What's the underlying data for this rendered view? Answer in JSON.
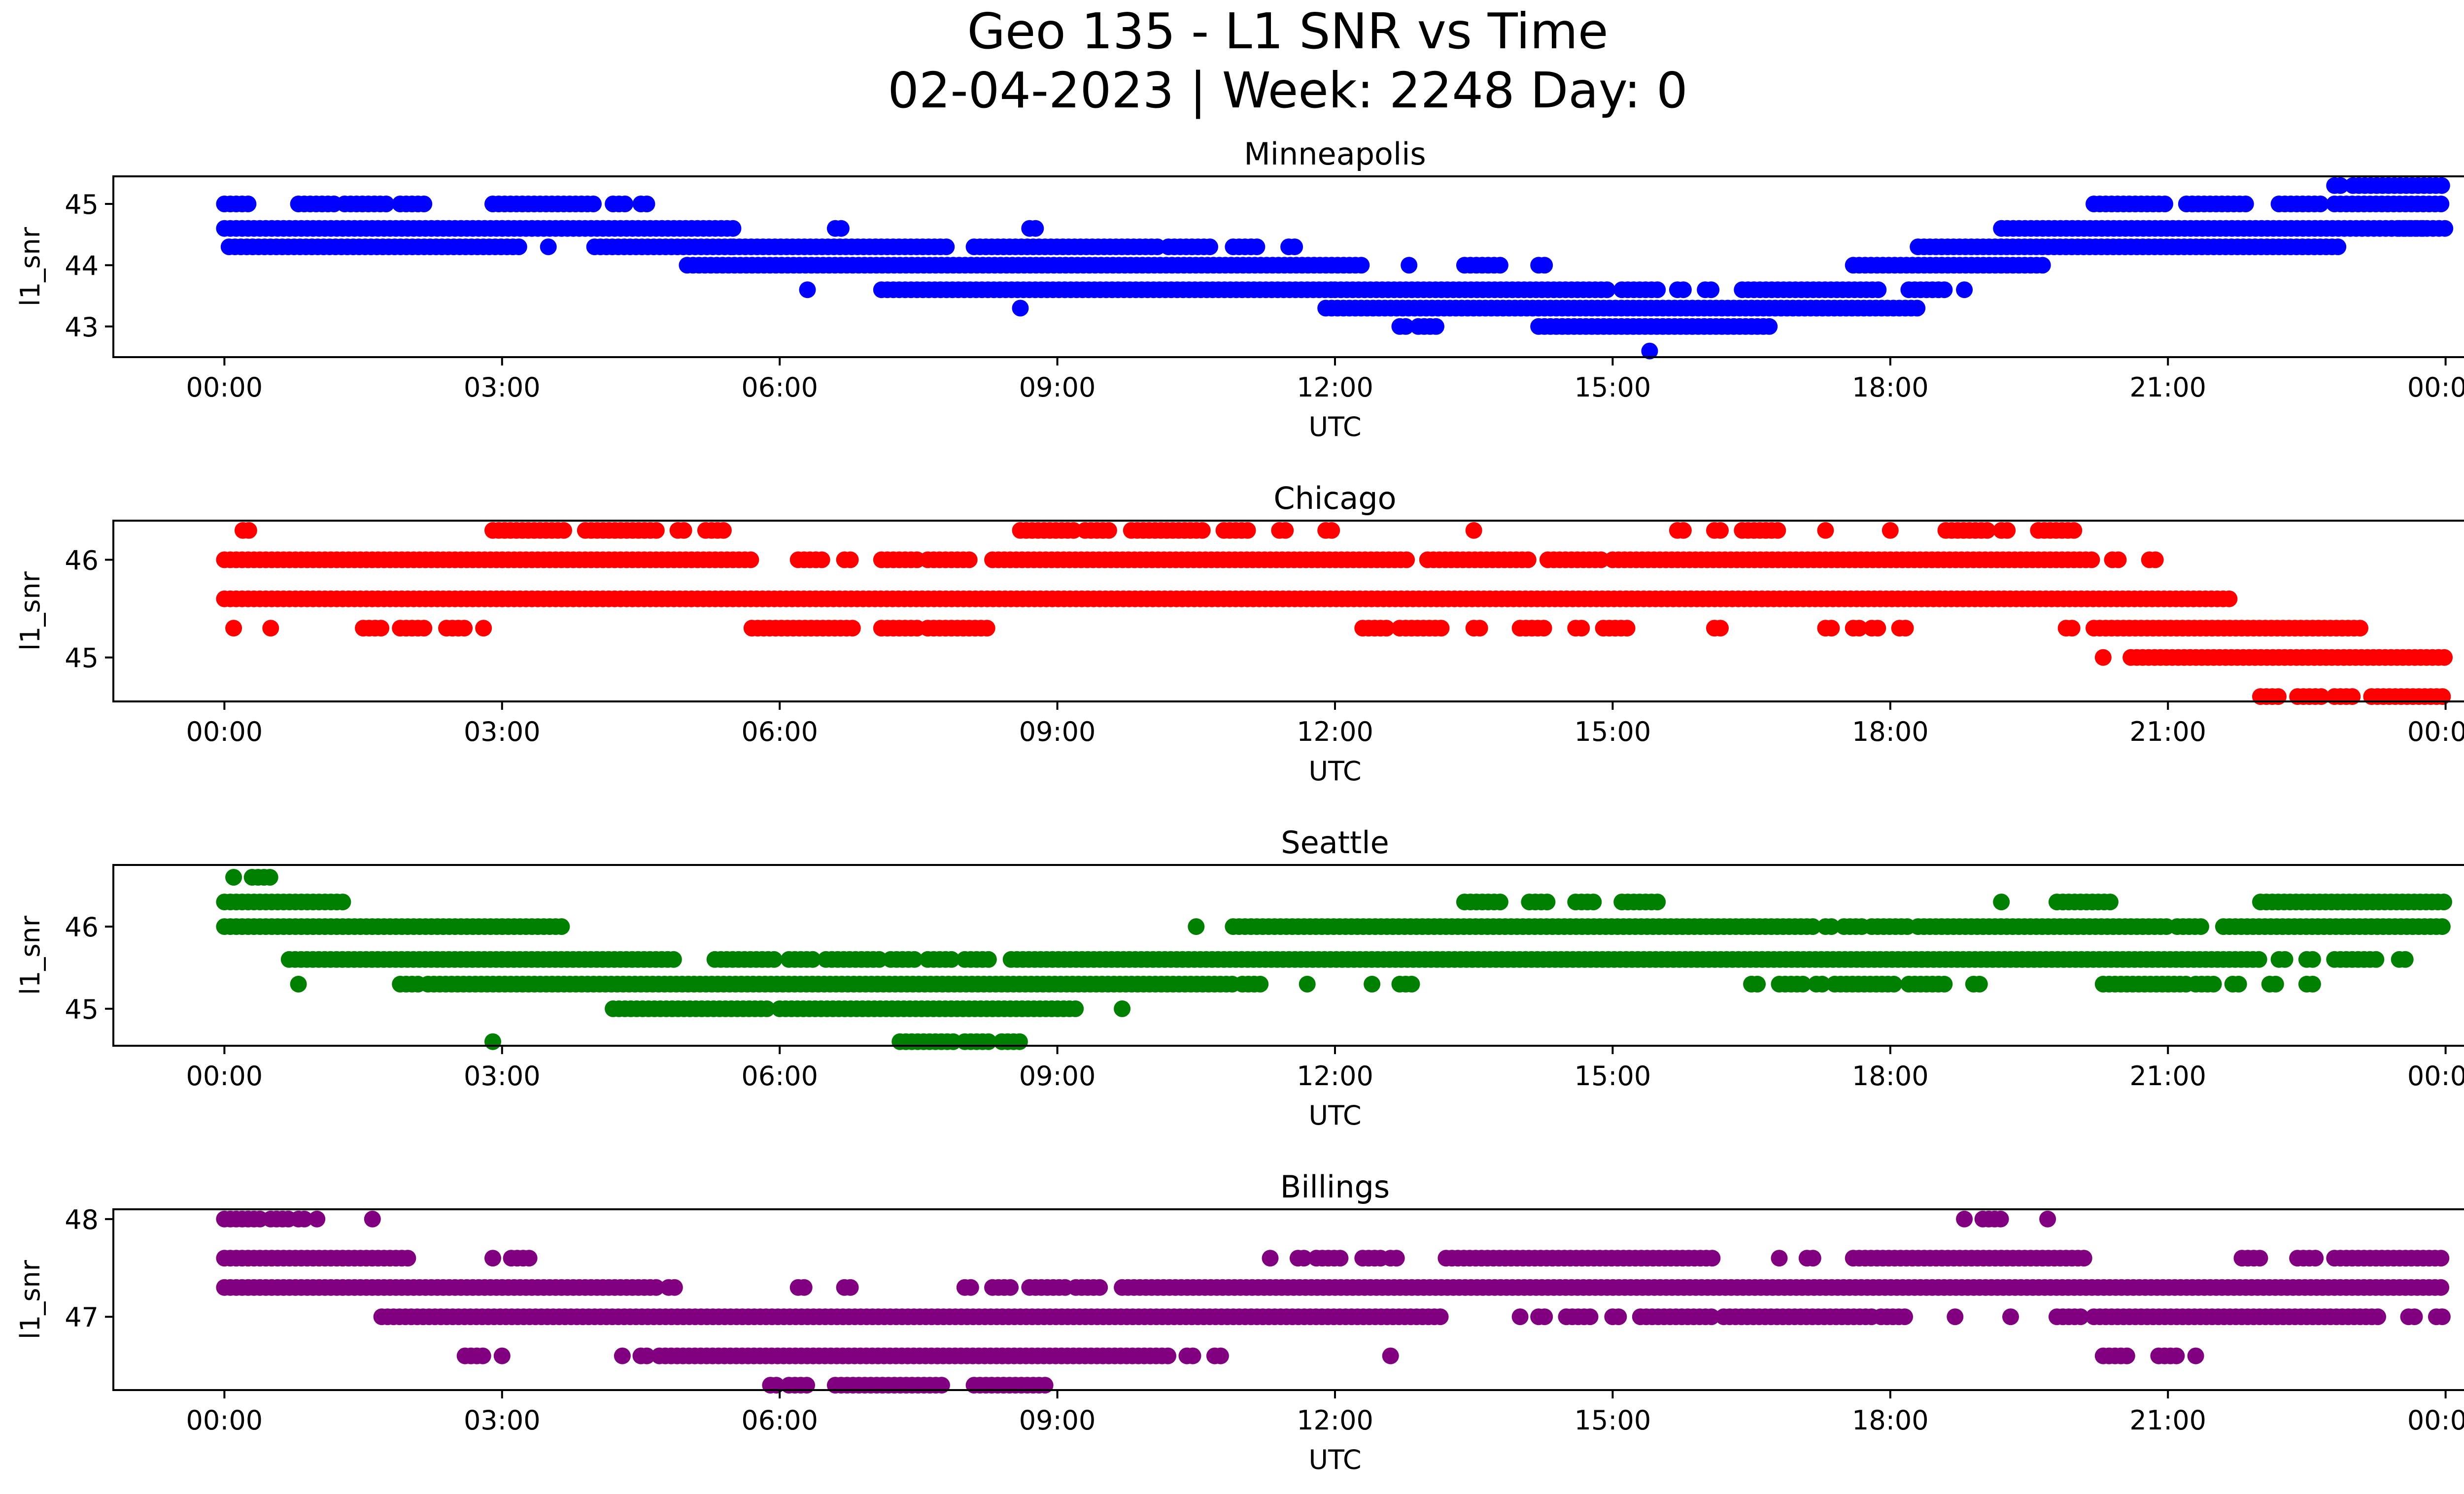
{
  "figure": {
    "title_line1": "Geo 135 - L1 SNR vs Time",
    "title_line2": "02-04-2023 | Week: 2248 Day: 0"
  },
  "x_axis": {
    "label": "UTC",
    "ticks": [
      "00:00",
      "03:00",
      "06:00",
      "09:00",
      "12:00",
      "15:00",
      "18:00",
      "21:00",
      "00:00"
    ],
    "range_hours": [
      -1.2,
      25.2
    ]
  },
  "chart_data": [
    {
      "type": "scatter",
      "title": "Minneapolis",
      "ylabel": "l1_snr",
      "color": "#0000ff",
      "ylim": [
        42.5,
        45.45
      ],
      "yticks": [
        43,
        44,
        45
      ],
      "bands": [
        {
          "y": 45.0,
          "segments": [
            [
              0.0,
              0.3
            ],
            [
              0.8,
              1.2
            ],
            [
              1.3,
              1.8
            ],
            [
              1.9,
              2.2
            ],
            [
              2.9,
              4.0
            ],
            [
              4.2,
              4.35
            ],
            [
              4.5,
              4.6
            ]
          ]
        },
        {
          "y": 44.6,
          "segments": [
            [
              0.0,
              5.5
            ],
            [
              6.6,
              6.7
            ],
            [
              8.7,
              8.8
            ]
          ]
        },
        {
          "y": 44.3,
          "segments": [
            [
              0.05,
              3.2
            ],
            [
              3.5,
              3.55
            ],
            [
              4.0,
              5.5
            ]
          ]
        },
        {
          "y": 44.0,
          "segments": [
            [
              5.0,
              12.3
            ],
            [
              12.8,
              12.85
            ],
            [
              13.4,
              13.8
            ],
            [
              14.2,
              14.3
            ]
          ]
        },
        {
          "y": 44.3,
          "segments": [
            [
              5.5,
              7.8
            ],
            [
              8.1,
              10.1
            ],
            [
              10.2,
              10.7
            ],
            [
              10.9,
              11.2
            ],
            [
              11.5,
              11.6
            ]
          ]
        },
        {
          "y": 43.6,
          "segments": [
            [
              6.3,
              6.35
            ],
            [
              7.1,
              12.0
            ],
            [
              12.0,
              15.0
            ],
            [
              15.1,
              15.5
            ],
            [
              15.7,
              15.8
            ],
            [
              16.0,
              16.1
            ],
            [
              16.4,
              17.9
            ],
            [
              18.2,
              18.6
            ],
            [
              18.8,
              18.85
            ]
          ]
        },
        {
          "y": 43.3,
          "segments": [
            [
              8.6,
              8.65
            ],
            [
              11.9,
              18.3
            ]
          ]
        },
        {
          "y": 43.0,
          "segments": [
            [
              12.7,
              12.8
            ],
            [
              12.9,
              13.1
            ],
            [
              14.2,
              16.7
            ]
          ]
        },
        {
          "y": 42.6,
          "segments": [
            [
              15.4,
              15.45
            ]
          ]
        },
        {
          "y": 44.0,
          "segments": [
            [
              17.6,
              19.7
            ]
          ]
        },
        {
          "y": 44.3,
          "segments": [
            [
              18.3,
              22.9
            ]
          ]
        },
        {
          "y": 44.6,
          "segments": [
            [
              19.2,
              24.0
            ],
            [
              23.5,
              23.8
            ]
          ]
        },
        {
          "y": 45.0,
          "segments": [
            [
              20.2,
              21.0
            ],
            [
              21.2,
              21.9
            ],
            [
              22.2,
              22.7
            ],
            [
              22.8,
              24.0
            ]
          ]
        },
        {
          "y": 45.3,
          "segments": [
            [
              22.8,
              22.9
            ],
            [
              23.0,
              24.0
            ]
          ]
        }
      ]
    },
    {
      "type": "scatter",
      "title": "Chicago",
      "ylabel": "l1_snr",
      "color": "#ff0000",
      "ylim": [
        44.55,
        46.4
      ],
      "yticks": [
        45,
        46
      ],
      "bands": [
        {
          "y": 46.3,
          "segments": [
            [
              0.2,
              0.3
            ],
            [
              2.9,
              3.7
            ],
            [
              3.9,
              4.7
            ],
            [
              4.9,
              5.0
            ],
            [
              5.2,
              5.4
            ],
            [
              8.6,
              9.2
            ],
            [
              9.3,
              9.6
            ],
            [
              9.8,
              10.6
            ],
            [
              10.8,
              11.1
            ],
            [
              11.4,
              11.5
            ],
            [
              11.9,
              12.0
            ],
            [
              13.5,
              13.55
            ],
            [
              15.7,
              15.8
            ],
            [
              16.1,
              16.2
            ],
            [
              16.4,
              16.8
            ],
            [
              17.3,
              17.35
            ],
            [
              18.0,
              18.05
            ],
            [
              18.6,
              19.1
            ],
            [
              19.2,
              19.3
            ],
            [
              19.6,
              20.0
            ]
          ]
        },
        {
          "y": 46.0,
          "segments": [
            [
              0.0,
              5.7
            ],
            [
              6.2,
              6.5
            ],
            [
              6.7,
              6.8
            ],
            [
              7.1,
              7.5
            ],
            [
              7.6,
              8.1
            ],
            [
              8.3,
              12.8
            ],
            [
              13.0,
              14.1
            ],
            [
              14.3,
              14.9
            ],
            [
              15.0,
              20.2
            ],
            [
              20.4,
              20.5
            ],
            [
              20.8,
              20.9
            ]
          ]
        },
        {
          "y": 45.6,
          "segments": [
            [
              0.0,
              21.7
            ]
          ]
        },
        {
          "y": 45.3,
          "segments": [
            [
              0.1,
              0.15
            ],
            [
              0.5,
              0.55
            ],
            [
              1.5,
              1.7
            ],
            [
              1.9,
              2.2
            ],
            [
              2.4,
              2.6
            ],
            [
              2.8,
              2.85
            ],
            [
              5.7,
              6.8
            ],
            [
              7.1,
              7.5
            ],
            [
              7.6,
              8.3
            ],
            [
              12.3,
              12.6
            ],
            [
              12.7,
              13.2
            ],
            [
              13.5,
              13.6
            ],
            [
              14.0,
              14.3
            ],
            [
              14.6,
              14.7
            ],
            [
              14.9,
              15.2
            ],
            [
              16.1,
              16.2
            ],
            [
              17.3,
              17.4
            ],
            [
              17.6,
              17.7
            ],
            [
              17.8,
              17.9
            ],
            [
              18.1,
              18.2
            ],
            [
              19.9,
              20.0
            ],
            [
              20.2,
              23.1
            ]
          ]
        },
        {
          "y": 45.0,
          "segments": [
            [
              20.3,
              20.35
            ],
            [
              20.6,
              24.0
            ]
          ]
        },
        {
          "y": 44.6,
          "segments": [
            [
              22.0,
              22.2
            ],
            [
              22.4,
              22.7
            ],
            [
              22.8,
              23.0
            ],
            [
              23.2,
              24.0
            ]
          ]
        }
      ]
    },
    {
      "type": "scatter",
      "title": "Seattle",
      "ylabel": "l1_snr",
      "color": "#008000",
      "ylim": [
        44.55,
        46.75
      ],
      "yticks": [
        45,
        46
      ],
      "bands": [
        {
          "y": 46.6,
          "segments": [
            [
              0.1,
              0.15
            ],
            [
              0.3,
              0.5
            ]
          ]
        },
        {
          "y": 46.3,
          "segments": [
            [
              0.0,
              1.3
            ],
            [
              13.4,
              13.8
            ],
            [
              14.1,
              14.3
            ],
            [
              14.6,
              14.8
            ],
            [
              15.1,
              15.5
            ],
            [
              19.2,
              19.25
            ],
            [
              19.8,
              20.4
            ],
            [
              22.0,
              24.0
            ]
          ]
        },
        {
          "y": 46.0,
          "segments": [
            [
              0.0,
              3.7
            ],
            [
              10.5,
              10.55
            ],
            [
              10.9,
              17.2
            ],
            [
              17.3,
              17.4
            ],
            [
              17.5,
              17.7
            ],
            [
              17.8,
              18.2
            ],
            [
              18.3,
              21.0
            ],
            [
              21.1,
              21.4
            ],
            [
              21.6,
              24.0
            ]
          ]
        },
        {
          "y": 45.6,
          "segments": [
            [
              0.7,
              4.9
            ],
            [
              5.3,
              6.0
            ],
            [
              6.1,
              6.4
            ],
            [
              6.5,
              7.1
            ],
            [
              7.2,
              7.5
            ],
            [
              7.6,
              7.9
            ],
            [
              8.0,
              8.3
            ],
            [
              8.5,
              22.0
            ],
            [
              22.2,
              22.3
            ],
            [
              22.5,
              22.6
            ],
            [
              22.8,
              23.3
            ],
            [
              23.5,
              23.6
            ]
          ]
        },
        {
          "y": 45.3,
          "segments": [
            [
              0.8,
              0.85
            ],
            [
              1.9,
              2.1
            ],
            [
              2.2,
              10.9
            ],
            [
              11.0,
              11.2
            ],
            [
              11.7,
              11.75
            ],
            [
              12.4,
              12.45
            ],
            [
              12.7,
              12.85
            ],
            [
              16.5,
              16.6
            ],
            [
              16.8,
              17.1
            ],
            [
              17.2,
              17.3
            ],
            [
              17.4,
              18.1
            ],
            [
              18.2,
              18.6
            ],
            [
              18.9,
              19.0
            ],
            [
              20.3,
              21.2
            ],
            [
              21.3,
              21.5
            ],
            [
              21.7,
              21.8
            ],
            [
              22.1,
              22.2
            ],
            [
              22.5,
              22.6
            ]
          ]
        },
        {
          "y": 45.0,
          "segments": [
            [
              4.2,
              5.9
            ],
            [
              6.0,
              9.2
            ],
            [
              9.7,
              9.75
            ]
          ]
        },
        {
          "y": 44.6,
          "segments": [
            [
              2.9,
              2.95
            ],
            [
              7.3,
              7.9
            ],
            [
              8.0,
              8.3
            ],
            [
              8.4,
              8.6
            ]
          ]
        }
      ]
    },
    {
      "type": "scatter",
      "title": "Billings",
      "ylabel": "l1_snr",
      "color": "#800080",
      "ylim": [
        46.25,
        48.1
      ],
      "yticks": [
        47,
        48
      ],
      "bands": [
        {
          "y": 48.0,
          "segments": [
            [
              0.0,
              0.4
            ],
            [
              0.5,
              0.7
            ],
            [
              0.8,
              0.9
            ],
            [
              1.0,
              1.05
            ],
            [
              1.6,
              1.65
            ],
            [
              18.8,
              18.85
            ],
            [
              19.0,
              19.2
            ],
            [
              19.7,
              19.75
            ]
          ]
        },
        {
          "y": 47.6,
          "segments": [
            [
              0.0,
              2.0
            ],
            [
              2.9,
              2.95
            ],
            [
              3.1,
              3.3
            ],
            [
              11.3,
              11.35
            ],
            [
              11.6,
              11.7
            ],
            [
              11.8,
              12.1
            ],
            [
              12.3,
              12.5
            ],
            [
              12.6,
              12.7
            ],
            [
              13.2,
              16.1
            ],
            [
              16.8,
              16.85
            ],
            [
              17.1,
              17.2
            ],
            [
              17.6,
              20.1
            ],
            [
              21.8,
              22.0
            ],
            [
              22.4,
              22.6
            ],
            [
              22.8,
              24.0
            ]
          ]
        },
        {
          "y": 47.3,
          "segments": [
            [
              0.0,
              4.7
            ],
            [
              4.8,
              4.9
            ],
            [
              6.2,
              6.3
            ],
            [
              6.7,
              6.8
            ],
            [
              8.0,
              8.1
            ],
            [
              8.3,
              8.5
            ],
            [
              8.7,
              9.1
            ],
            [
              9.2,
              9.5
            ],
            [
              9.7,
              24.0
            ]
          ]
        },
        {
          "y": 47.0,
          "segments": [
            [
              1.7,
              13.2
            ],
            [
              14.0,
              14.05
            ],
            [
              14.2,
              14.3
            ],
            [
              14.5,
              14.8
            ],
            [
              15.0,
              15.1
            ],
            [
              15.3,
              16.1
            ],
            [
              16.2,
              17.8
            ],
            [
              17.9,
              18.2
            ],
            [
              18.7,
              18.75
            ],
            [
              19.3,
              19.35
            ],
            [
              19.8,
              20.1
            ],
            [
              20.2,
              23.3
            ],
            [
              23.6,
              23.7
            ],
            [
              23.9,
              24.0
            ]
          ]
        },
        {
          "y": 46.6,
          "segments": [
            [
              2.6,
              2.8
            ],
            [
              3.0,
              3.05
            ],
            [
              4.3,
              4.35
            ],
            [
              4.5,
              4.6
            ],
            [
              4.7,
              10.2
            ],
            [
              10.4,
              10.5
            ],
            [
              10.7,
              10.8
            ],
            [
              12.6,
              12.65
            ],
            [
              20.3,
              20.6
            ],
            [
              20.9,
              21.1
            ],
            [
              21.3,
              21.35
            ]
          ]
        },
        {
          "y": 46.3,
          "segments": [
            [
              5.9,
              6.0
            ],
            [
              6.1,
              6.3
            ],
            [
              6.6,
              7.8
            ],
            [
              8.1,
              8.9
            ]
          ]
        }
      ]
    }
  ]
}
